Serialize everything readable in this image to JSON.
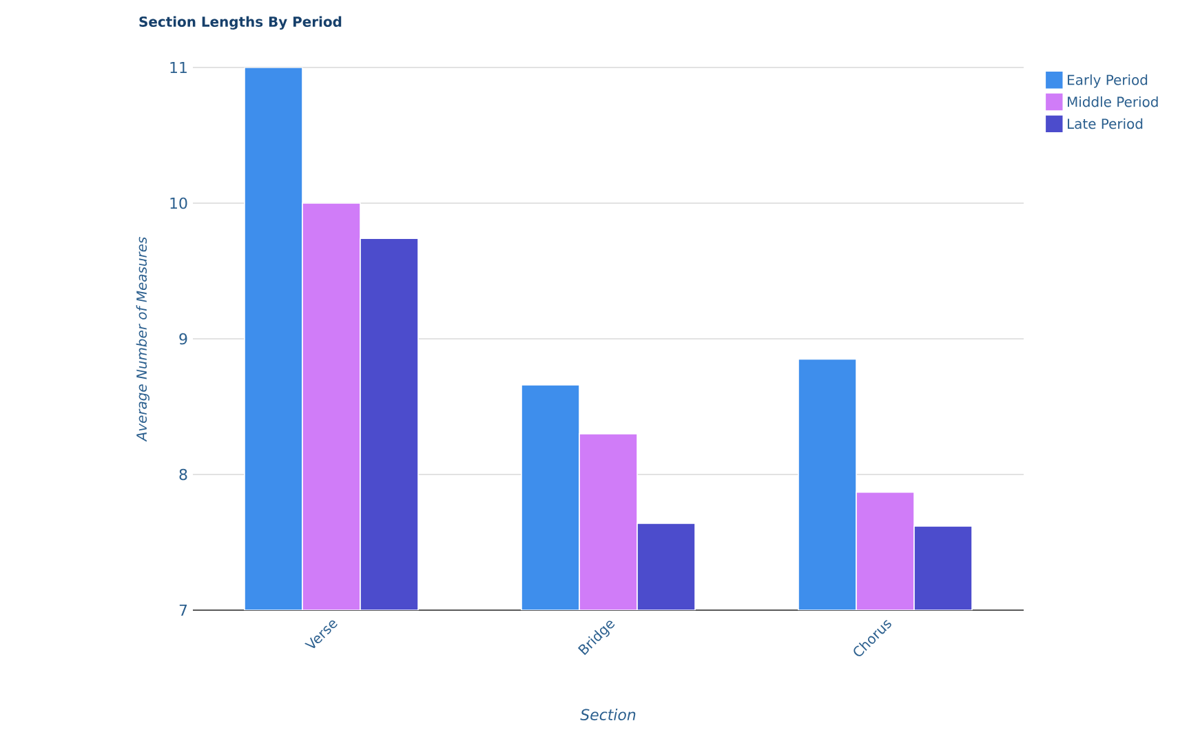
{
  "chart_data": {
    "type": "bar",
    "title": "Section Lengths By Period",
    "xlabel": "Section",
    "ylabel": "Average Number of Measures",
    "categories": [
      "Verse",
      "Bridge",
      "Chorus"
    ],
    "series": [
      {
        "name": "Early Period",
        "color": "#3e8eec",
        "values": [
          11,
          8.66,
          8.85
        ]
      },
      {
        "name": "Middle Period",
        "color": "#d07cf8",
        "values": [
          10,
          8.3,
          7.87
        ]
      },
      {
        "name": "Late Period",
        "color": "#4c4ccc",
        "values": [
          9.74,
          7.64,
          7.62
        ]
      }
    ],
    "ylim": [
      7,
      11
    ],
    "yticks": [
      7,
      8,
      9,
      10,
      11
    ],
    "grid": "y",
    "legend": "top right"
  }
}
